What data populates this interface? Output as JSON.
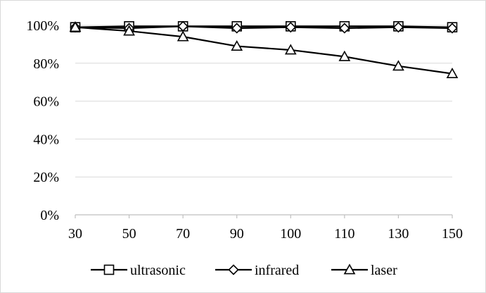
{
  "chart_data": {
    "type": "line",
    "title": "",
    "xlabel": "",
    "ylabel": "",
    "categories": [
      "30",
      "50",
      "70",
      "90",
      "100",
      "110",
      "130",
      "150"
    ],
    "y_ticks": [
      "0%",
      "20%",
      "40%",
      "60%",
      "80%",
      "100%"
    ],
    "ylim": [
      0,
      100
    ],
    "y_unit": "%",
    "grid": "horizontal",
    "legend_position": "bottom",
    "series": [
      {
        "name": "ultrasonic",
        "marker": "square",
        "values": [
          99,
          99.5,
          99.5,
          99.5,
          99.5,
          99.5,
          99.5,
          99
        ]
      },
      {
        "name": "infrared",
        "marker": "diamond",
        "values": [
          99,
          98.5,
          99.5,
          98.5,
          99,
          98.5,
          99,
          98.5
        ]
      },
      {
        "name": "laser",
        "marker": "triangle",
        "values": [
          99,
          97,
          94,
          89,
          87,
          83.5,
          78.5,
          74.5
        ]
      }
    ],
    "colors": {
      "line": "#000000",
      "grid": "#d9d9d9",
      "axis": "#bfbfbf",
      "frame": "#d9d9d9"
    }
  }
}
